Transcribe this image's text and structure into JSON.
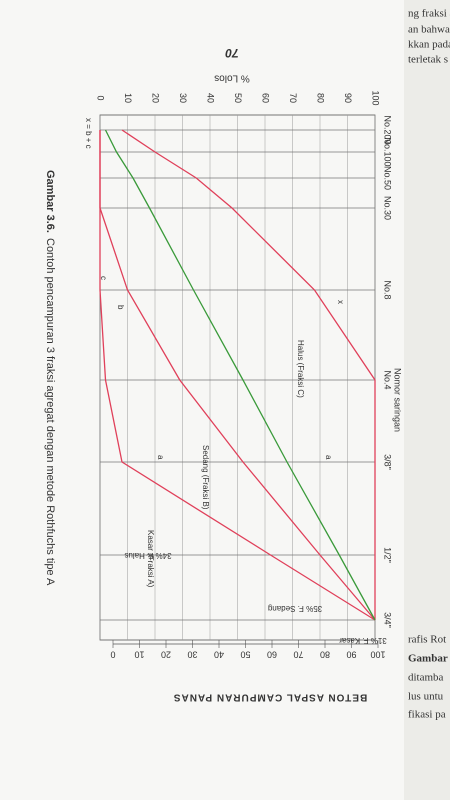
{
  "page_number": "70",
  "header": "BETON ASPAL CAMPURAN PANAS",
  "side_text": [
    "ng fraksi agr",
    "an bahwa",
    "kkan pada",
    "terletak s",
    "rafis Rot",
    "Gambar",
    "ditamba",
    "lus untu",
    "fikasi pa"
  ],
  "chart_data": {
    "type": "line",
    "caption_label": "Gambar 3.6.",
    "caption": "Contoh pencampuran 3 fraksi agregat dengan metode Rothfuchs tipe A",
    "y_label": "% Lolos",
    "x_label": "Nomor saringan",
    "categories": [
      "No.200",
      "No.100",
      "No.50",
      "No.30",
      "No.8",
      "No.4",
      "3/8\"",
      "1/2\"",
      "3/4\""
    ],
    "series": [
      {
        "name": "Halus (Fraksi C)",
        "color": "#e0405a",
        "values": [
          8,
          20,
          35,
          48,
          78,
          100,
          100,
          100,
          100
        ]
      },
      {
        "name": "Sedang (Fraksi B)",
        "color": "#e0405a",
        "values": [
          0,
          0,
          0,
          0,
          10,
          29,
          52,
          80,
          100
        ]
      },
      {
        "name": "Kasar (Fraksi A)",
        "color": "#e0405a",
        "values": [
          0,
          0,
          0,
          0,
          0,
          2,
          8,
          62,
          100
        ]
      },
      {
        "color": "#3a9a3a",
        "values": [
          2,
          6,
          12,
          18,
          34,
          52,
          68,
          87,
          100
        ]
      }
    ],
    "ylim": [
      0,
      100
    ],
    "yticks": [
      0,
      10,
      20,
      30,
      40,
      50,
      60,
      70,
      80,
      90,
      100
    ],
    "y2lim": [
      0,
      100
    ],
    "y2ticks": [
      0,
      10,
      20,
      30,
      40,
      50,
      60,
      70,
      80,
      90,
      100
    ],
    "grid": true,
    "fraction_labels": [
      "31% F. Kasar",
      "35% F. Sedang",
      "34% F. Halus"
    ],
    "annotations": [
      "x = b + c",
      "a",
      "b",
      "c",
      "x",
      "a"
    ]
  }
}
